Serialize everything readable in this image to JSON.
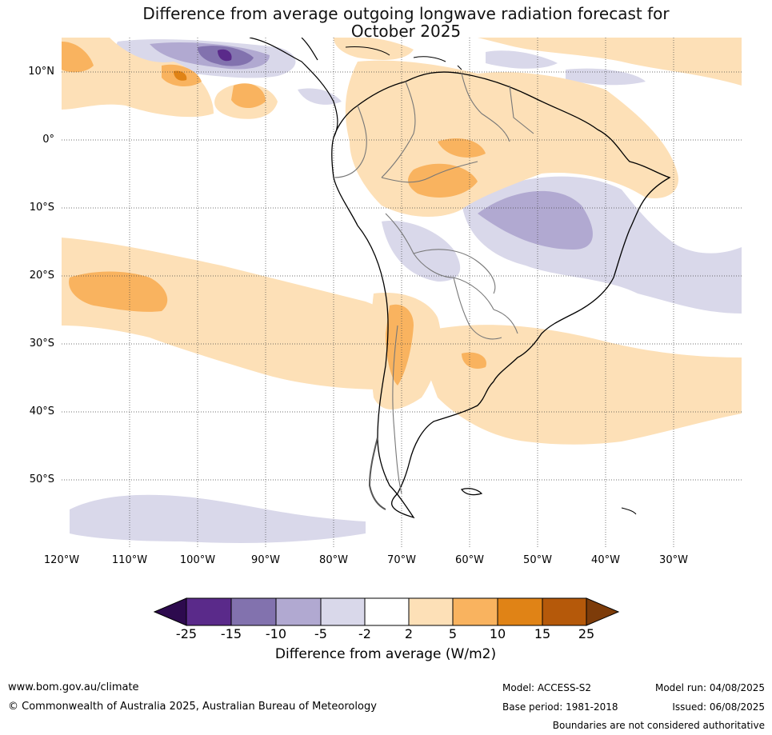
{
  "title": {
    "line1": "Difference from average outgoing longwave radiation forecast for",
    "line2": "October 2025"
  },
  "map": {
    "lat_labels": [
      "10°N",
      "0°",
      "10°S",
      "20°S",
      "30°S",
      "40°S",
      "50°S"
    ],
    "lon_labels": [
      "120°W",
      "110°W",
      "100°W",
      "90°W",
      "80°W",
      "70°W",
      "60°W",
      "50°W",
      "40°W",
      "30°W"
    ],
    "gridlines": true,
    "extent": {
      "lon": [
        -120,
        -20
      ],
      "lat": [
        -60,
        15
      ]
    },
    "anomaly_regions": [
      {
        "name": "Amazon / northern Brazil",
        "sign": "positive",
        "approx_value_W_m2": "2 to 10"
      },
      {
        "name": "Eastern Brazil plateau",
        "sign": "negative",
        "approx_value_W_m2": "-2 to -10"
      },
      {
        "name": "Southeast Pacific subtropics",
        "sign": "positive",
        "approx_value_W_m2": "2 to 10"
      },
      {
        "name": "Andes of central Chile / Argentina",
        "sign": "positive",
        "approx_value_W_m2": "2 to 10"
      },
      {
        "name": "Eastern tropical Pacific near Central America",
        "sign": "negative",
        "approx_value_W_m2": "-2 to -25"
      },
      {
        "name": "Southern Ocean near 55°S",
        "sign": "negative",
        "approx_value_W_m2": "-2 to -5"
      }
    ]
  },
  "colorbar": {
    "ticks": [
      "-25",
      "-15",
      "-10",
      "-5",
      "-2",
      "2",
      "5",
      "10",
      "15",
      "25"
    ],
    "colors": [
      "#2d0a4e",
      "#5a2a8a",
      "#8272ae",
      "#b1a9d1",
      "#d9d8ea",
      "#ffffff",
      "#fde0b7",
      "#f9b35f",
      "#e08316",
      "#b5590a",
      "#7d3c0a"
    ],
    "title": "Difference from average (W/m2)"
  },
  "footer": {
    "website": "www.bom.gov.au/climate",
    "copyright": "© Commonwealth of Australia 2025, Australian Bureau of Meteorology",
    "model": "Model: ACCESS-S2",
    "base_period": "Base period: 1981-2018",
    "model_run": "Model run: 04/08/2025",
    "issued": "Issued: 06/08/2025",
    "disclaimer": "Boundaries are not considered authoritative"
  }
}
